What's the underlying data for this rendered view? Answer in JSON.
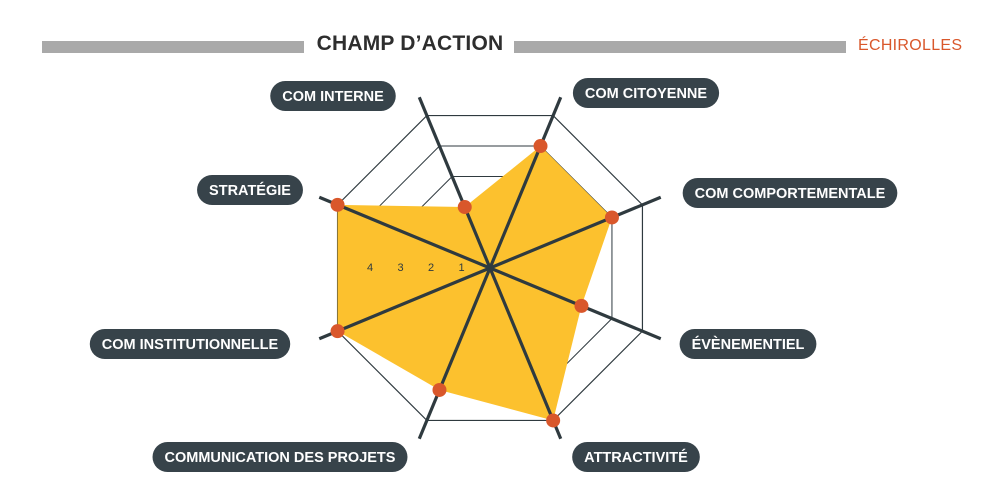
{
  "header": {
    "title": "CHAMP D’ACTION",
    "subtitle": "ÉCHIROLLES"
  },
  "colors": {
    "fill": "#fcc12e",
    "point": "#d9572b",
    "axis": "#2f3a3f",
    "grid": "#2f3a3f",
    "pill": "#37434a",
    "bar": "#a9a9a9"
  },
  "chart_data": {
    "type": "radar",
    "title": "CHAMP D’ACTION",
    "rmax": 5,
    "ticks": [
      "1",
      "2",
      "3",
      "4"
    ],
    "categories": [
      "COM CITOYENNE",
      "COM COMPORTEMENTALE",
      "ÉVÈNEMENTIEL",
      "ATTRACTIVITÉ",
      "COMMUNICATION DES PROJETS",
      "COM INSTITUTIONNELLE",
      "STRATÉGIE",
      "COM INTERNE"
    ],
    "values": [
      4,
      4,
      3,
      5,
      4,
      5,
      5,
      2
    ]
  }
}
